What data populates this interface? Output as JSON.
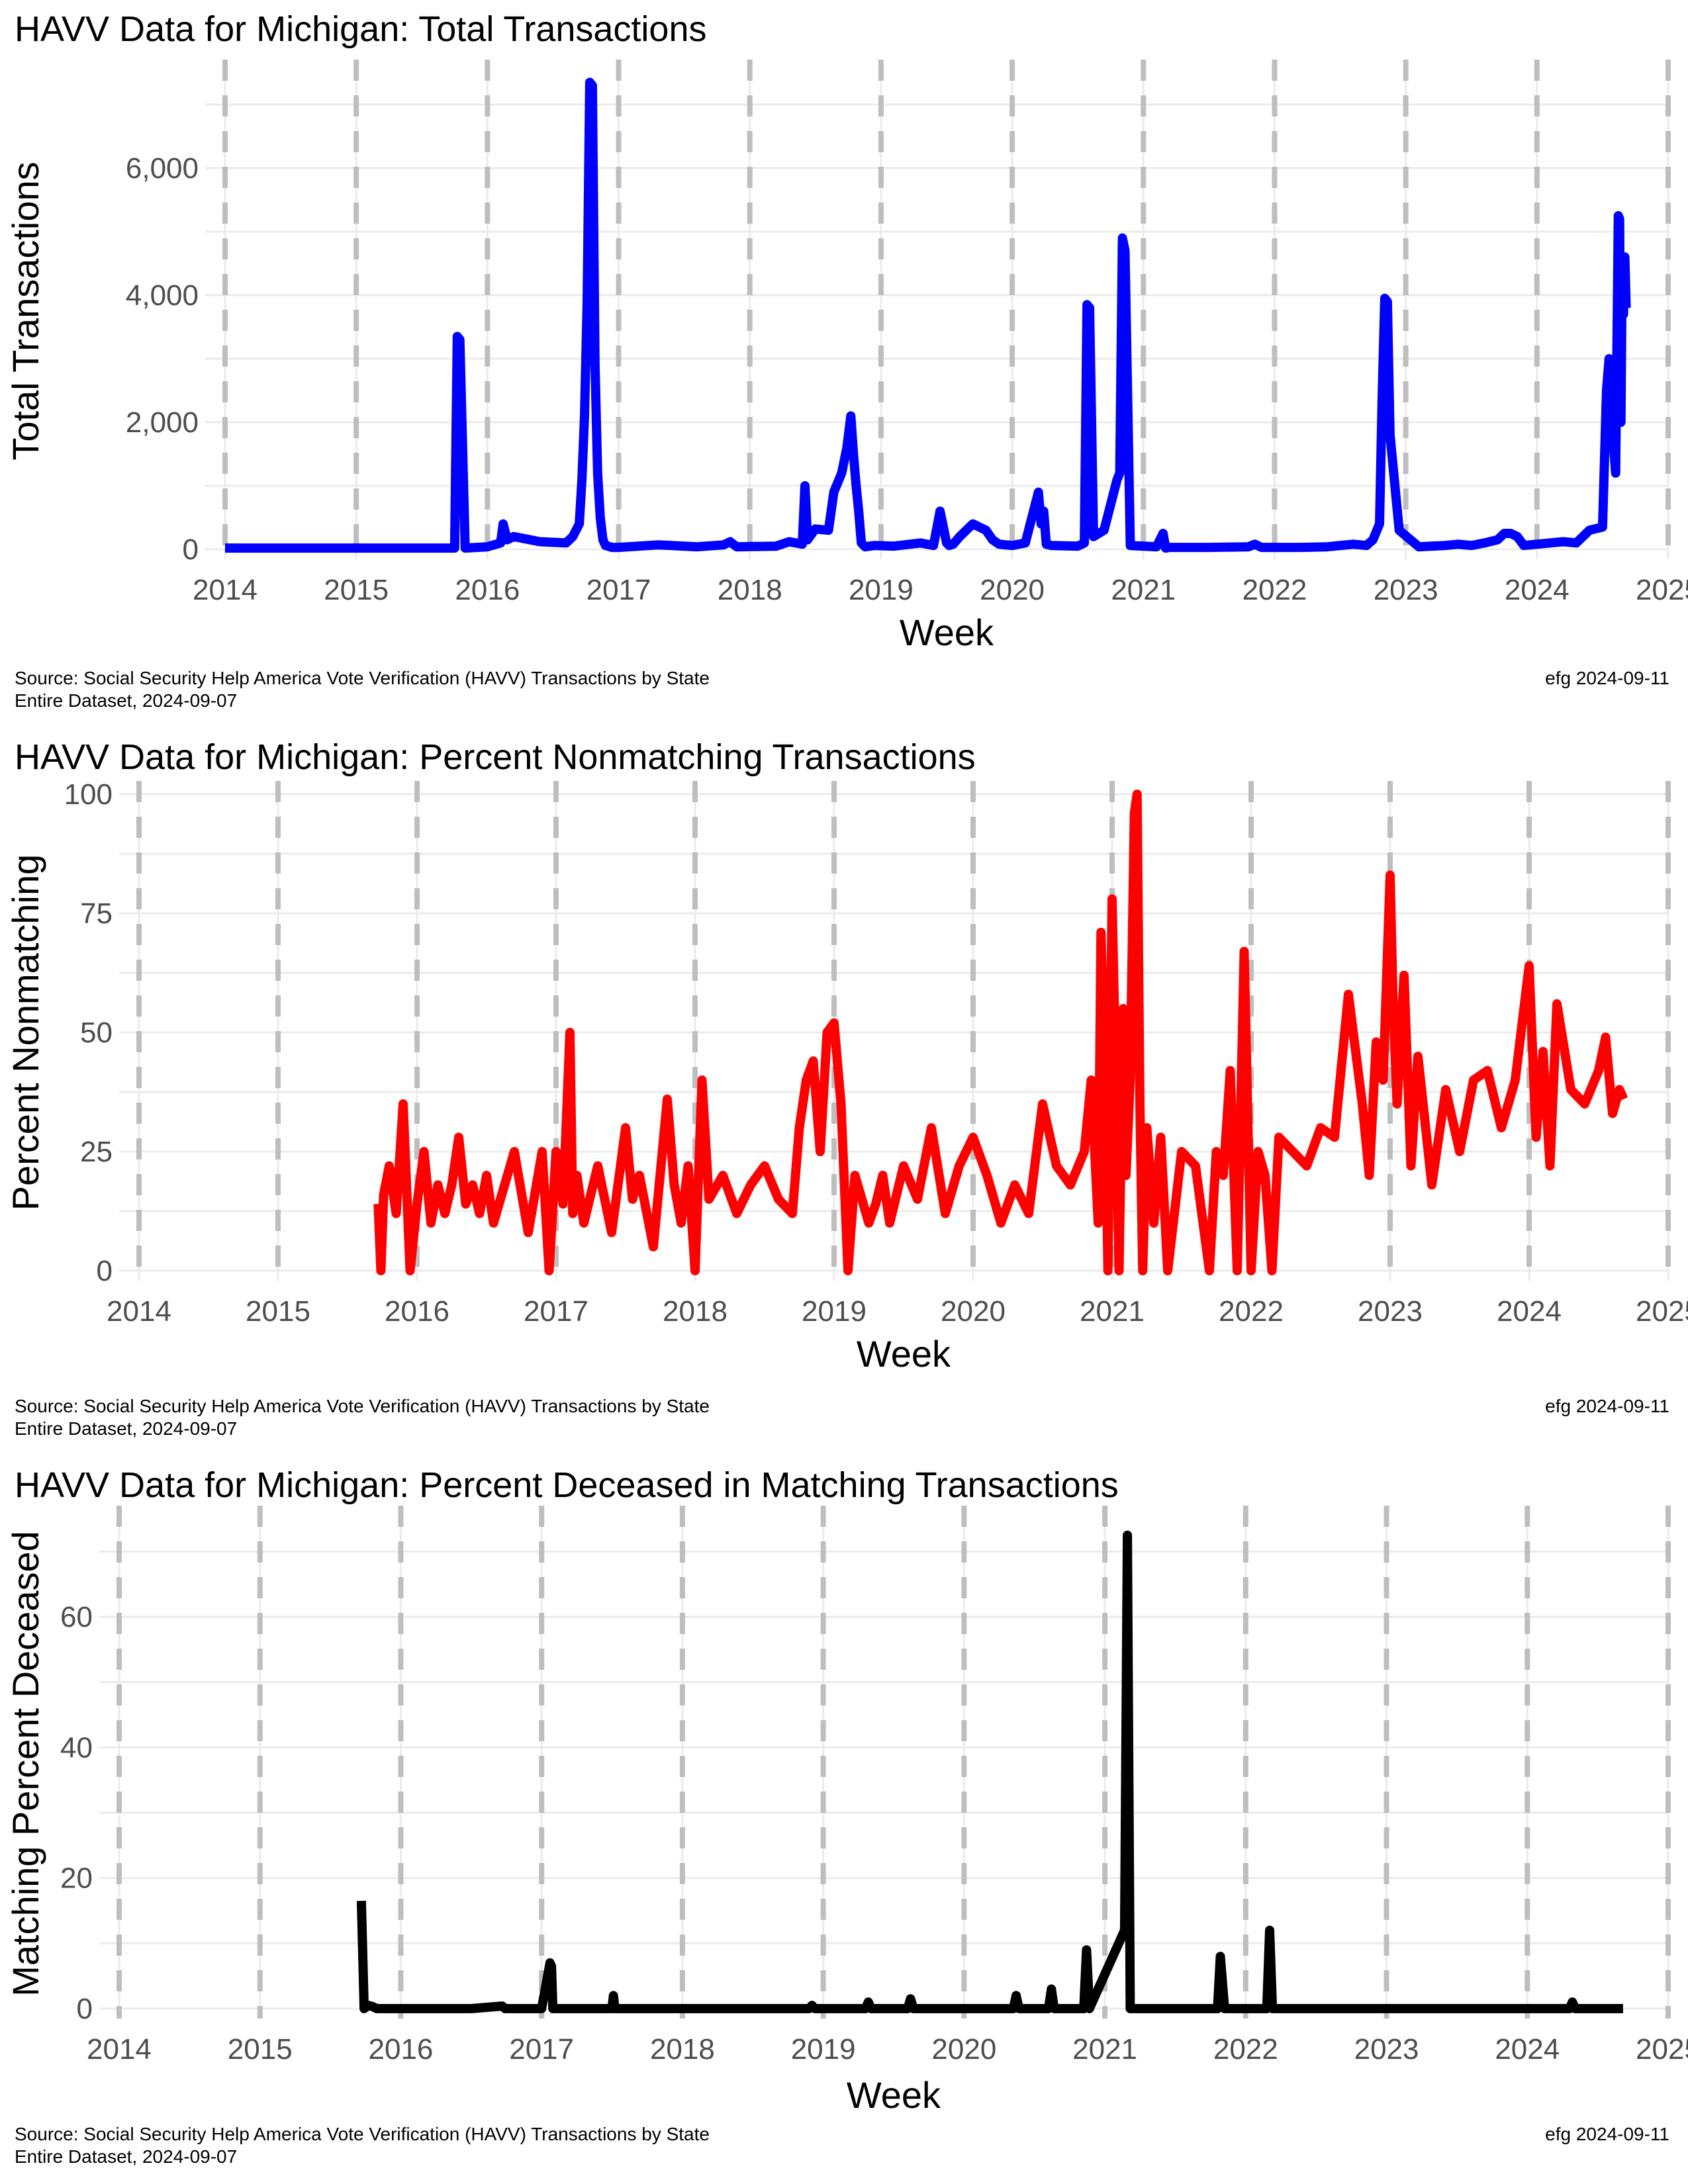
{
  "caption": {
    "source": "Source:  Social Security Help America Vote Verification (HAVV) Transactions by State",
    "dataset": "Entire Dataset, 2024-09-07",
    "author": "efg 2024-09-11"
  },
  "chart_data": [
    {
      "type": "line",
      "title": "HAVV Data for Michigan:  Total Transactions",
      "xlabel": "Week",
      "ylabel": "Total Transactions",
      "xlim": [
        2014.0,
        2025.0
      ],
      "ylim": [
        0,
        7500
      ],
      "xticks": [
        2014,
        2015,
        2016,
        2017,
        2018,
        2019,
        2020,
        2021,
        2022,
        2023,
        2024,
        2025
      ],
      "xtick_labels": [
        "2014",
        "2015",
        "2016",
        "2017",
        "2018",
        "2019",
        "2020",
        "2021",
        "2022",
        "2023",
        "2024",
        "2025"
      ],
      "yticks": [
        0,
        2000,
        4000,
        6000
      ],
      "ytick_labels": [
        "0",
        "2,000",
        "4,000",
        "6,000"
      ],
      "vlines": [
        2014,
        2015,
        2016,
        2017,
        2018,
        2019,
        2020,
        2021,
        2022,
        2023,
        2024,
        2025
      ],
      "grid": true,
      "legend": "none",
      "color": "#0000ff",
      "x": [
        2014.0,
        2015.7,
        2015.75,
        2015.77,
        2015.79,
        2015.83,
        2016.0,
        2016.1,
        2016.12,
        2016.15,
        2016.2,
        2016.4,
        2016.6,
        2016.65,
        2016.7,
        2016.72,
        2016.74,
        2016.76,
        2016.78,
        2016.8,
        2016.82,
        2016.84,
        2016.86,
        2016.88,
        2016.9,
        2016.95,
        2017.0,
        2017.3,
        2017.6,
        2017.8,
        2017.85,
        2017.9,
        2018.2,
        2018.3,
        2018.4,
        2018.42,
        2018.44,
        2018.5,
        2018.6,
        2018.64,
        2018.7,
        2018.74,
        2018.77,
        2018.79,
        2018.81,
        2018.83,
        2018.85,
        2018.88,
        2018.95,
        2019.1,
        2019.3,
        2019.4,
        2019.45,
        2019.5,
        2019.52,
        2019.55,
        2019.6,
        2019.7,
        2019.8,
        2019.85,
        2019.9,
        2020.0,
        2020.1,
        2020.2,
        2020.22,
        2020.24,
        2020.26,
        2020.3,
        2020.5,
        2020.55,
        2020.57,
        2020.59,
        2020.62,
        2020.7,
        2020.75,
        2020.8,
        2020.82,
        2020.84,
        2020.86,
        2020.9,
        2021.1,
        2021.15,
        2021.17,
        2021.2,
        2021.5,
        2021.8,
        2021.85,
        2021.9,
        2022.2,
        2022.4,
        2022.6,
        2022.7,
        2022.75,
        2022.8,
        2022.82,
        2022.84,
        2022.86,
        2022.88,
        2022.95,
        2023.1,
        2023.3,
        2023.4,
        2023.5,
        2023.6,
        2023.7,
        2023.75,
        2023.8,
        2023.85,
        2023.9,
        2024.0,
        2024.2,
        2024.3,
        2024.4,
        2024.5,
        2024.53,
        2024.55,
        2024.57,
        2024.6,
        2024.62,
        2024.63,
        2024.64,
        2024.65,
        2024.66,
        2024.67,
        2024.68
      ],
      "y": [
        20,
        20,
        20,
        3350,
        3300,
        20,
        40,
        100,
        400,
        150,
        200,
        120,
        100,
        200,
        400,
        1100,
        2100,
        3900,
        7350,
        7300,
        2900,
        1200,
        500,
        150,
        60,
        30,
        30,
        70,
        40,
        70,
        120,
        40,
        50,
        120,
        80,
        1000,
        150,
        320,
        300,
        900,
        1200,
        1600,
        2100,
        1500,
        1000,
        600,
        100,
        40,
        60,
        50,
        100,
        60,
        600,
        100,
        60,
        80,
        200,
        400,
        300,
        150,
        80,
        60,
        100,
        900,
        400,
        600,
        80,
        60,
        50,
        100,
        3850,
        3800,
        200,
        300,
        700,
        1100,
        1200,
        4900,
        4700,
        60,
        40,
        250,
        20,
        30,
        30,
        40,
        80,
        30,
        30,
        40,
        80,
        60,
        150,
        400,
        2400,
        3950,
        3900,
        1800,
        300,
        40,
        60,
        80,
        60,
        100,
        150,
        250,
        250,
        200,
        60,
        80,
        120,
        100,
        300,
        350,
        2500,
        3000,
        2000,
        1200,
        5250,
        5200,
        2000,
        4500,
        3700,
        4600,
        3800
      ]
    },
    {
      "type": "line",
      "title": "HAVV Data for Michigan:  Percent Nonmatching Transactions",
      "xlabel": "Week",
      "ylabel": "Percent Nonmatching",
      "xlim": [
        2014.0,
        2025.0
      ],
      "ylim": [
        0,
        100
      ],
      "xticks": [
        2014,
        2015,
        2016,
        2017,
        2018,
        2019,
        2020,
        2021,
        2022,
        2023,
        2024,
        2025
      ],
      "xtick_labels": [
        "2014",
        "2015",
        "2016",
        "2017",
        "2018",
        "2019",
        "2020",
        "2021",
        "2022",
        "2023",
        "2024",
        "2025"
      ],
      "yticks": [
        0,
        25,
        50,
        75,
        100
      ],
      "ytick_labels": [
        "0",
        "25",
        "50",
        "75",
        "100"
      ],
      "vlines": [
        2014,
        2015,
        2016,
        2017,
        2018,
        2019,
        2020,
        2021,
        2022,
        2023,
        2024,
        2025
      ],
      "grid": true,
      "legend": "none",
      "color": "#ff0000",
      "x": [
        2015.72,
        2015.74,
        2015.76,
        2015.8,
        2015.85,
        2015.9,
        2015.95,
        2016.0,
        2016.05,
        2016.1,
        2016.15,
        2016.2,
        2016.25,
        2016.3,
        2016.35,
        2016.4,
        2016.45,
        2016.5,
        2016.55,
        2016.6,
        2016.7,
        2016.8,
        2016.9,
        2016.95,
        2017.0,
        2017.05,
        2017.1,
        2017.12,
        2017.15,
        2017.2,
        2017.3,
        2017.4,
        2017.5,
        2017.55,
        2017.6,
        2017.7,
        2017.8,
        2017.85,
        2017.9,
        2017.95,
        2018.0,
        2018.05,
        2018.1,
        2018.2,
        2018.3,
        2018.4,
        2018.5,
        2018.6,
        2018.7,
        2018.75,
        2018.8,
        2018.85,
        2018.9,
        2018.95,
        2019.0,
        2019.05,
        2019.1,
        2019.15,
        2019.2,
        2019.25,
        2019.3,
        2019.35,
        2019.4,
        2019.5,
        2019.6,
        2019.7,
        2019.8,
        2019.9,
        2020.0,
        2020.1,
        2020.2,
        2020.3,
        2020.4,
        2020.5,
        2020.6,
        2020.7,
        2020.8,
        2020.85,
        2020.9,
        2020.92,
        2020.95,
        2020.97,
        2021.0,
        2021.02,
        2021.05,
        2021.08,
        2021.1,
        2021.13,
        2021.16,
        2021.18,
        2021.2,
        2021.22,
        2021.25,
        2021.3,
        2021.35,
        2021.4,
        2021.5,
        2021.6,
        2021.7,
        2021.75,
        2021.8,
        2021.85,
        2021.9,
        2021.95,
        2022.0,
        2022.05,
        2022.1,
        2022.15,
        2022.2,
        2022.3,
        2022.4,
        2022.5,
        2022.6,
        2022.7,
        2022.8,
        2022.85,
        2022.9,
        2022.95,
        2023.0,
        2023.02,
        2023.05,
        2023.1,
        2023.15,
        2023.2,
        2023.3,
        2023.4,
        2023.5,
        2023.6,
        2023.7,
        2023.8,
        2023.9,
        2024.0,
        2024.05,
        2024.1,
        2024.15,
        2024.2,
        2024.3,
        2024.4,
        2024.5,
        2024.55,
        2024.6,
        2024.65,
        2024.68
      ],
      "y": [
        14,
        0,
        16,
        22,
        12,
        35,
        0,
        14,
        25,
        10,
        18,
        12,
        18,
        28,
        14,
        18,
        12,
        20,
        10,
        15,
        25,
        8,
        25,
        0,
        25,
        14,
        50,
        12,
        20,
        10,
        22,
        8,
        30,
        15,
        20,
        5,
        36,
        18,
        10,
        22,
        0,
        40,
        15,
        20,
        12,
        18,
        22,
        15,
        12,
        30,
        40,
        44,
        25,
        50,
        52,
        35,
        0,
        20,
        15,
        10,
        14,
        20,
        10,
        22,
        15,
        30,
        12,
        22,
        28,
        20,
        10,
        18,
        12,
        35,
        22,
        18,
        25,
        40,
        10,
        71,
        40,
        0,
        78,
        50,
        0,
        55,
        20,
        40,
        96,
        100,
        35,
        0,
        30,
        10,
        28,
        0,
        25,
        22,
        0,
        25,
        20,
        42,
        0,
        67,
        0,
        25,
        20,
        0,
        28,
        25,
        22,
        30,
        28,
        58,
        35,
        20,
        48,
        40,
        83,
        58,
        35,
        62,
        22,
        45,
        18,
        38,
        25,
        40,
        42,
        30,
        40,
        64,
        28,
        46,
        22,
        56,
        38,
        35,
        42,
        49,
        33,
        38,
        36
      ]
    },
    {
      "type": "line",
      "title": "HAVV Data for Michigan:  Percent Deceased in Matching Transactions",
      "xlabel": "Week",
      "ylabel": "Matching Percent Deceased",
      "xlim": [
        2014.0,
        2025.0
      ],
      "ylim": [
        0,
        75
      ],
      "xticks": [
        2014,
        2015,
        2016,
        2017,
        2018,
        2019,
        2020,
        2021,
        2022,
        2023,
        2024,
        2025
      ],
      "xtick_labels": [
        "2014",
        "2015",
        "2016",
        "2017",
        "2018",
        "2019",
        "2020",
        "2021",
        "2022",
        "2023",
        "2024",
        "2025"
      ],
      "yticks": [
        0,
        20,
        40,
        60
      ],
      "ytick_labels": [
        "0",
        "20",
        "40",
        "60"
      ],
      "vlines": [
        2014,
        2015,
        2016,
        2017,
        2018,
        2019,
        2020,
        2021,
        2022,
        2023,
        2024,
        2025
      ],
      "grid": true,
      "legend": "none",
      "color": "#000000",
      "x": [
        2015.72,
        2015.74,
        2015.77,
        2015.8,
        2015.83,
        2016.5,
        2016.72,
        2016.74,
        2017.0,
        2017.06,
        2017.07,
        2017.08,
        2017.5,
        2017.51,
        2017.52,
        2018.9,
        2018.92,
        2018.94,
        2019.3,
        2019.32,
        2019.34,
        2019.6,
        2019.62,
        2019.64,
        2020.35,
        2020.37,
        2020.39,
        2020.6,
        2020.62,
        2020.64,
        2020.85,
        2020.87,
        2020.89,
        2021.14,
        2021.16,
        2021.18,
        2021.8,
        2021.82,
        2021.85,
        2022.15,
        2022.17,
        2022.19,
        2024.3,
        2024.32,
        2024.34,
        2024.68
      ],
      "y": [
        16.5,
        0,
        0.5,
        0.3,
        0,
        0,
        0.4,
        0,
        0,
        7,
        6.5,
        0,
        0,
        2,
        0,
        0,
        0.5,
        0,
        0,
        1,
        0,
        0,
        1.5,
        0,
        0,
        2,
        0,
        0,
        3,
        0,
        0,
        9,
        0,
        12,
        72.5,
        0,
        0,
        8,
        0,
        0,
        12,
        0,
        0,
        1,
        0,
        0
      ]
    }
  ]
}
